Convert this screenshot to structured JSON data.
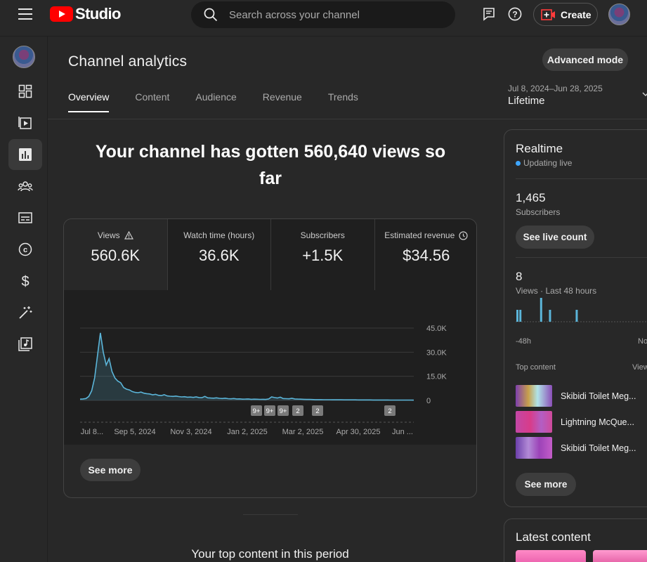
{
  "topbar": {
    "logo_text": "Studio",
    "search_placeholder": "Search across your channel",
    "create_label": "Create"
  },
  "header": {
    "title": "Channel analytics",
    "advanced_mode_label": "Advanced mode",
    "tabs": [
      {
        "label": "Overview",
        "active": true
      },
      {
        "label": "Content",
        "active": false
      },
      {
        "label": "Audience",
        "active": false
      },
      {
        "label": "Revenue",
        "active": false
      },
      {
        "label": "Trends",
        "active": false
      }
    ],
    "date_range": "Jul 8, 2024–Jun 28, 2025",
    "date_label": "Lifetime"
  },
  "main": {
    "headline_line1": "Your channel has gotten 560,640 views so",
    "headline_line2": "far",
    "metrics": [
      {
        "label": "Views",
        "value": "560.6K",
        "icon": "warning-icon"
      },
      {
        "label": "Watch time (hours)",
        "value": "36.6K",
        "icon": ""
      },
      {
        "label": "Subscribers",
        "value": "+1.5K",
        "icon": ""
      },
      {
        "label": "Estimated revenue",
        "value": "$34.56",
        "icon": "clock-icon"
      }
    ],
    "see_more_label": "See more",
    "top_content_heading": "Your top content in this period"
  },
  "chart_data": {
    "type": "line",
    "series": [
      {
        "values": [
          800,
          900,
          1200,
          2500,
          6000,
          14000,
          28000,
          42000,
          30000,
          22000,
          26000,
          18000,
          14000,
          12000,
          11000,
          8000,
          7000,
          6500,
          5500,
          5000,
          4800,
          5200,
          4500,
          4200,
          4000,
          3500,
          3800,
          3200,
          3000,
          3600,
          2800,
          2600,
          2500,
          2700,
          2400,
          2200,
          2300,
          2000,
          2100,
          1900,
          2200,
          1800,
          1700,
          2500,
          1600,
          1500,
          1400,
          1600,
          1300,
          1200,
          1400,
          1100,
          1000,
          1200,
          900,
          950,
          800,
          850,
          900,
          700,
          800,
          750,
          650,
          700,
          600,
          900,
          2200,
          1800,
          1500,
          2000,
          1200,
          1100,
          1000,
          1300,
          900,
          850,
          800,
          700,
          600,
          650,
          550,
          500,
          480,
          460,
          450,
          430,
          420,
          410,
          400,
          390,
          380,
          370,
          360,
          350,
          340,
          330,
          320,
          310,
          300,
          300,
          290,
          280,
          280,
          270,
          260,
          250,
          250,
          240,
          230,
          230,
          220,
          220,
          210,
          200,
          200,
          190
        ]
      }
    ],
    "x_tick_labels": [
      "Jul 8...",
      "Sep 5, 2024",
      "Nov 3, 2024",
      "Jan 2, 2025",
      "Mar 2, 2025",
      "Apr 30, 2025",
      "Jun ..."
    ],
    "y_tick_labels": [
      "45.0K",
      "30.0K",
      "15.0K",
      "0"
    ],
    "ylim": [
      0,
      45000
    ],
    "grid": true,
    "markers": [
      "9+",
      "9+",
      "9+",
      "2",
      "2",
      "2"
    ],
    "color": "#5bb5d9"
  },
  "realtime": {
    "title": "Realtime",
    "live_text": "Updating live",
    "subscribers_value": "1,465",
    "subscribers_label": "Subscribers",
    "live_count_label": "See live count",
    "views_value": "8",
    "views_label": "Views · Last 48 hours",
    "bar_values": [
      1,
      1,
      0,
      0,
      0,
      0,
      0,
      0,
      2,
      0,
      0,
      1,
      0,
      0,
      0,
      0,
      0,
      0,
      0,
      0,
      1,
      0,
      0,
      0,
      0,
      0,
      0,
      0,
      0,
      0,
      0,
      0,
      0,
      0,
      0,
      0,
      0,
      0,
      0,
      0,
      0,
      0,
      0,
      0,
      0,
      2
    ],
    "axis_left": "-48h",
    "axis_right": "No",
    "top_content_label": "Top content",
    "top_content_right": "View",
    "items": [
      {
        "title": "Skibidi Toilet Meg..."
      },
      {
        "title": "Lightning McQue..."
      },
      {
        "title": "Skibidi Toilet Meg..."
      }
    ],
    "see_more_label": "See more"
  },
  "latest": {
    "title": "Latest content"
  }
}
